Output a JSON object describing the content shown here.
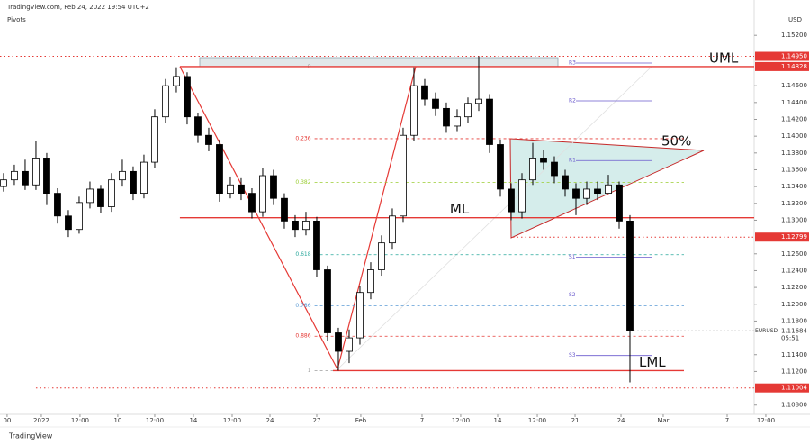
{
  "chart_data": {
    "type": "candlestick",
    "header": "TradingView.com, Feb 24, 2022 19:54 UTC+2",
    "indicator": "Pivots",
    "currency": "USD",
    "symbol": "EURUSD",
    "countdown": "05:51",
    "footer": "TradingView",
    "up_color": "#ffffff",
    "down_color": "#000000",
    "x": [
      0,
      1,
      2,
      3,
      4,
      5,
      6,
      7,
      8,
      9,
      10,
      11,
      12,
      13,
      14,
      15,
      16,
      17,
      18,
      19,
      20,
      21,
      22,
      23,
      24,
      25,
      26,
      27,
      28,
      29,
      30,
      31,
      32,
      33,
      34,
      35,
      36,
      37,
      38,
      39,
      40,
      41,
      42,
      43,
      44,
      45,
      46,
      47,
      48,
      49,
      50,
      51,
      52,
      53,
      54,
      55,
      56,
      57,
      58
    ],
    "open": [
      1.134,
      1.1348,
      1.1358,
      1.1342,
      1.1374,
      1.1332,
      1.1305,
      1.1289,
      1.1321,
      1.1337,
      1.1316,
      1.1348,
      1.1358,
      1.1332,
      1.1369,
      1.1423,
      1.146,
      1.1471,
      1.1423,
      1.1401,
      1.139,
      1.1332,
      1.1342,
      1.1332,
      1.131,
      1.1353,
      1.1326,
      1.1299,
      1.1289,
      1.1299,
      1.1241,
      1.1166,
      1.1144,
      1.116,
      1.1214,
      1.1241,
      1.1273,
      1.1305,
      1.1401,
      1.146,
      1.1444,
      1.1433,
      1.1412,
      1.1423,
      1.1439,
      1.1444,
      1.139,
      1.1337,
      1.131,
      1.1348,
      1.1374,
      1.1369,
      1.1353,
      1.1337,
      1.1326,
      1.1337,
      1.1332,
      1.1342,
      1.1299
    ],
    "high": [
      1.1356,
      1.1366,
      1.1372,
      1.1394,
      1.138,
      1.1338,
      1.1312,
      1.1328,
      1.1346,
      1.1342,
      1.1356,
      1.1372,
      1.1364,
      1.1378,
      1.1432,
      1.1468,
      1.1482,
      1.1476,
      1.1428,
      1.141,
      1.1396,
      1.1352,
      1.135,
      1.1338,
      1.1362,
      1.136,
      1.1332,
      1.1306,
      1.131,
      1.1304,
      1.1246,
      1.1172,
      1.117,
      1.1222,
      1.125,
      1.1282,
      1.1314,
      1.141,
      1.1482,
      1.1468,
      1.1452,
      1.144,
      1.1432,
      1.1446,
      1.1495,
      1.145,
      1.1396,
      1.1344,
      1.1356,
      1.1392,
      1.1384,
      1.1376,
      1.136,
      1.1344,
      1.1346,
      1.1346,
      1.1354,
      1.1346,
      1.1306
    ],
    "low": [
      1.1334,
      1.1342,
      1.1336,
      1.1336,
      1.1318,
      1.1296,
      1.128,
      1.1284,
      1.1314,
      1.1308,
      1.131,
      1.134,
      1.1324,
      1.1326,
      1.1362,
      1.1416,
      1.1452,
      1.1414,
      1.1392,
      1.1382,
      1.1322,
      1.1326,
      1.1324,
      1.1302,
      1.1304,
      1.1318,
      1.129,
      1.128,
      1.1282,
      1.1232,
      1.1156,
      1.1121,
      1.113,
      1.1152,
      1.1206,
      1.1234,
      1.1266,
      1.1298,
      1.1394,
      1.1436,
      1.1424,
      1.1404,
      1.1406,
      1.1416,
      1.143,
      1.138,
      1.1328,
      1.13,
      1.1302,
      1.1342,
      1.136,
      1.1344,
      1.1328,
      1.1306,
      1.1318,
      1.1324,
      1.1334,
      1.129,
      1.1107
    ],
    "close": [
      1.1348,
      1.1358,
      1.1342,
      1.1374,
      1.1332,
      1.1305,
      1.1289,
      1.1321,
      1.1337,
      1.1316,
      1.1348,
      1.1358,
      1.1332,
      1.1369,
      1.1423,
      1.146,
      1.1471,
      1.1423,
      1.1401,
      1.139,
      1.1332,
      1.1342,
      1.1332,
      1.131,
      1.1353,
      1.1326,
      1.1299,
      1.1289,
      1.1299,
      1.1241,
      1.1166,
      1.1144,
      1.116,
      1.1214,
      1.1241,
      1.1273,
      1.1305,
      1.1401,
      1.146,
      1.1444,
      1.1433,
      1.1412,
      1.1423,
      1.1439,
      1.1444,
      1.139,
      1.1337,
      1.131,
      1.1348,
      1.1374,
      1.1369,
      1.1353,
      1.1337,
      1.1326,
      1.1337,
      1.1332,
      1.1342,
      1.1299,
      1.11684
    ],
    "last_price": {
      "value": 1.11684,
      "label": "1.11684"
    },
    "xlim": [
      -0.33,
      69.5
    ],
    "xticks": [
      {
        "value": 0.33,
        "label": "00"
      },
      {
        "value": 3.5,
        "label": "2022"
      },
      {
        "value": 7.08,
        "label": "12:00"
      },
      {
        "value": 10.58,
        "label": "10"
      },
      {
        "value": 14,
        "label": "12:00"
      },
      {
        "value": 17.58,
        "label": "14"
      },
      {
        "value": 21.17,
        "label": "12:00"
      },
      {
        "value": 24.67,
        "label": "24"
      },
      {
        "value": 29,
        "label": "27"
      },
      {
        "value": 33.08,
        "label": "Feb"
      },
      {
        "value": 38.75,
        "label": "7"
      },
      {
        "value": 42.33,
        "label": "12:00"
      },
      {
        "value": 45.75,
        "label": "14"
      },
      {
        "value": 49.42,
        "label": "12:00"
      },
      {
        "value": 52.92,
        "label": "21"
      },
      {
        "value": 57.17,
        "label": "24"
      },
      {
        "value": 61.08,
        "label": "Mar"
      },
      {
        "value": 67,
        "label": "7"
      },
      {
        "value": 70.58,
        "label": "12:00"
      }
    ],
    "ylim": [
      1.1069,
      1.1562
    ],
    "yticks": [
      {
        "value": 1.152,
        "label": "1.15200"
      },
      {
        "value": 1.146,
        "label": "1.14600"
      },
      {
        "value": 1.144,
        "label": "1.14400"
      },
      {
        "value": 1.142,
        "label": "1.14200"
      },
      {
        "value": 1.14,
        "label": "1.14000"
      },
      {
        "value": 1.138,
        "label": "1.13800"
      },
      {
        "value": 1.136,
        "label": "1.13600"
      },
      {
        "value": 1.134,
        "label": "1.13400"
      },
      {
        "value": 1.132,
        "label": "1.13200"
      },
      {
        "value": 1.13,
        "label": "1.13000"
      },
      {
        "value": 1.126,
        "label": "1.12600"
      },
      {
        "value": 1.124,
        "label": "1.12400"
      },
      {
        "value": 1.122,
        "label": "1.12200"
      },
      {
        "value": 1.12,
        "label": "1.12000"
      },
      {
        "value": 1.118,
        "label": "1.11800"
      },
      {
        "value": 1.114,
        "label": "1.11400"
      },
      {
        "value": 1.112,
        "label": "1.11200"
      },
      {
        "value": 1.108,
        "label": "1.10800"
      }
    ],
    "price_lines": [
      {
        "price": {
          "value": 1.1495,
          "label": "1.14950"
        },
        "style": "dotted",
        "color": "#e53935",
        "x_from": -0.33
      },
      {
        "price": {
          "value": 1.14828,
          "label": "1.14828"
        },
        "style": "solid",
        "color": "#e53935",
        "x_from": 16.33,
        "name": "UML"
      },
      {
        "price": {
          "value": 1.1303
        },
        "style": "solid",
        "color": "#e53935",
        "x_from": 16.33,
        "name": "ML"
      },
      {
        "price": {
          "value": 1.12799,
          "label": "1.12799"
        },
        "style": "dotted",
        "color": "#e53935",
        "x_from": 47.17
      },
      {
        "price": {
          "value": 1.1121
        },
        "style": "solid",
        "color": "#e53935",
        "x_from": 30.5,
        "x_to": 63,
        "name": "LML"
      },
      {
        "price": {
          "value": 1.11004,
          "label": "1.11004"
        },
        "style": "dotted",
        "color": "#e53935",
        "x_from": 3
      }
    ],
    "annotation": "50%",
    "fib": {
      "x_from": 28.8,
      "x_to": 63,
      "levels": [
        {
          "level": 0,
          "price": 1.14828,
          "color": "#9e9e9e"
        },
        {
          "level": 0.236,
          "price": 1.1397,
          "color": "#e53935"
        },
        {
          "level": 0.382,
          "price": 1.1345,
          "color": "#9acd32"
        },
        {
          "level": 0.618,
          "price": 1.1259,
          "color": "#26a69a"
        },
        {
          "level": 0.786,
          "price": 1.1198,
          "color": "#5b9bd5"
        },
        {
          "level": 0.886,
          "price": 1.1162,
          "color": "#e53935"
        },
        {
          "level": 1,
          "price": 1.1121,
          "color": "#9e9e9e"
        }
      ]
    },
    "pivots": {
      "x_from": 53,
      "x_to": 60,
      "color": "#6a5acd",
      "levels": [
        {
          "label": "R3",
          "price": 1.1487
        },
        {
          "label": "R2",
          "price": 1.1442
        },
        {
          "label": "R1",
          "price": 1.1371
        },
        {
          "label": "S1",
          "price": 1.1256
        },
        {
          "label": "S2",
          "price": 1.1211
        },
        {
          "label": "S3",
          "price": 1.1139
        }
      ]
    }
  }
}
